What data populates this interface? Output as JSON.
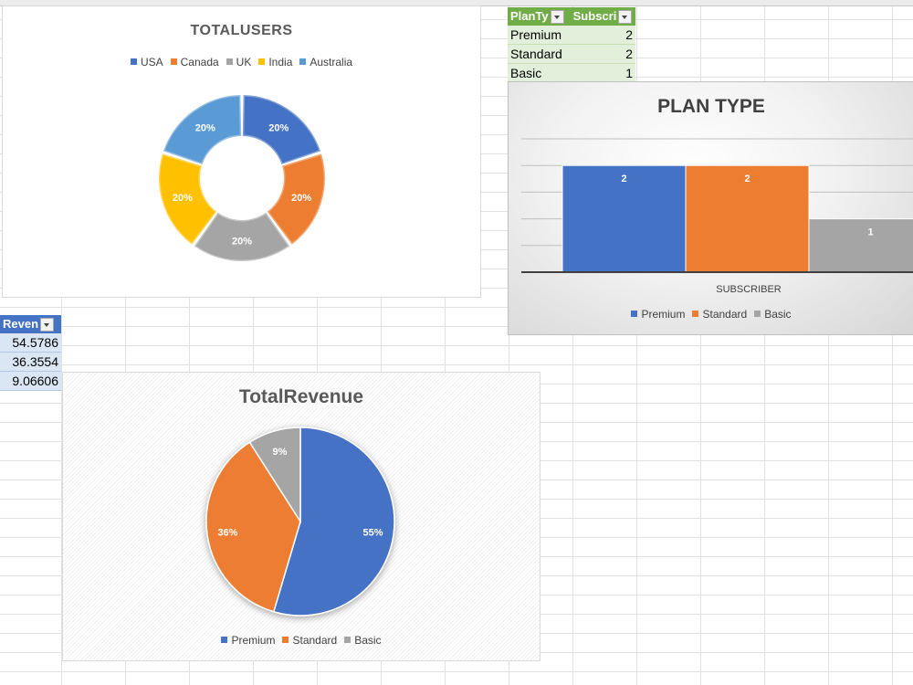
{
  "colors": {
    "blue": "#4472c4",
    "orange": "#ed7d31",
    "gray": "#a5a5a5",
    "yellow": "#ffc000",
    "lightblue": "#5b9bd5"
  },
  "plan_table": {
    "headers": [
      "PlanTy",
      "Subscri"
    ],
    "rows": [
      {
        "plan": "Premium",
        "count": "2"
      },
      {
        "plan": "Standard",
        "count": "2"
      },
      {
        "plan": "Basic",
        "count": "1"
      }
    ]
  },
  "revenue_table": {
    "header": "Reven",
    "rows": [
      "54.5786",
      "36.3554",
      "9.06606"
    ]
  },
  "chart_data": [
    {
      "type": "pie",
      "variant": "doughnut",
      "title": "TOTALUSERS",
      "legend_position": "top",
      "categories": [
        "USA",
        "Canada",
        "UK",
        "India",
        "Australia"
      ],
      "values": [
        1,
        1,
        1,
        1,
        1
      ],
      "labels": [
        "20%",
        "20%",
        "20%",
        "20%",
        "20%"
      ],
      "colors": [
        "#4472c4",
        "#ed7d31",
        "#a5a5a5",
        "#ffc000",
        "#5b9bd5"
      ]
    },
    {
      "type": "bar",
      "title": "PLAN TYPE",
      "xlabel": "SUBSCRIBER",
      "categories": [
        "SUBSCRIBER"
      ],
      "series": [
        {
          "name": "Premium",
          "values": [
            2
          ]
        },
        {
          "name": "Standard",
          "values": [
            2
          ]
        },
        {
          "name": "Basic",
          "values": [
            1
          ]
        }
      ],
      "ylim": [
        0,
        2.5
      ],
      "grid": true,
      "legend_position": "bottom",
      "colors": [
        "#4472c4",
        "#ed7d31",
        "#a5a5a5"
      ]
    },
    {
      "type": "pie",
      "title": "TotalRevenue",
      "legend_position": "bottom",
      "categories": [
        "Premium",
        "Standard",
        "Basic"
      ],
      "values": [
        54.5786,
        36.3554,
        9.06606
      ],
      "labels": [
        "55%",
        "36%",
        "9%"
      ],
      "colors": [
        "#4472c4",
        "#ed7d31",
        "#a5a5a5"
      ]
    }
  ]
}
